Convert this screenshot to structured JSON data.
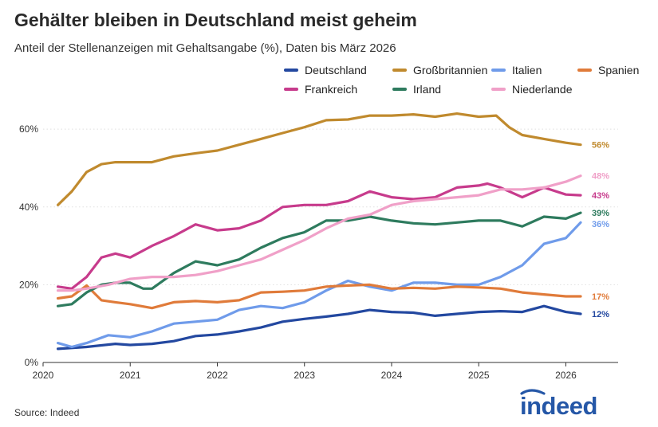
{
  "title": "Gehälter bleiben in Deutschland meist geheim",
  "subtitle": "Anteil der Stellenanzeigen mit Gehaltsangabe (%), Daten bis März 2026",
  "source": "Source: Indeed",
  "logo_text": "indeed",
  "colors": {
    "logo": "#2557a7",
    "axis": "#333333",
    "grid": "#e0e0e0"
  },
  "chart_data": {
    "type": "line",
    "title": "Gehälter bleiben in Deutschland meist geheim",
    "xlabel": "",
    "ylabel": "",
    "xlim": [
      2020,
      2026.6
    ],
    "ylim": [
      0,
      67
    ],
    "x_ticks": [
      2020,
      2021,
      2022,
      2023,
      2024,
      2025,
      2026
    ],
    "x_tick_labels": [
      "2020",
      "2021",
      "2022",
      "2023",
      "2024",
      "2025",
      "2026"
    ],
    "y_ticks": [
      0,
      20,
      40,
      60
    ],
    "y_tick_labels": [
      "0%",
      "20%",
      "40%",
      "60%"
    ],
    "grid": "y-dotted",
    "legend_position": "top-right",
    "series": [
      {
        "name": "Deutschland",
        "color": "#2348a0",
        "end_label": "12%",
        "x": [
          2020.17,
          2020.5,
          2020.83,
          2021.0,
          2021.25,
          2021.5,
          2021.75,
          2022.0,
          2022.25,
          2022.5,
          2022.75,
          2023.0,
          2023.25,
          2023.5,
          2023.75,
          2024.0,
          2024.25,
          2024.5,
          2024.75,
          2025.0,
          2025.25,
          2025.5,
          2025.75,
          2026.0,
          2026.17
        ],
        "y": [
          3.5,
          4,
          4.8,
          4.5,
          4.8,
          5.5,
          6.8,
          7.2,
          8,
          9,
          10.5,
          11.2,
          11.8,
          12.5,
          13.5,
          13,
          12.8,
          12,
          12.5,
          13,
          13.2,
          13,
          14.5,
          13,
          12.5
        ]
      },
      {
        "name": "Großbritannien",
        "color": "#c08a2e",
        "end_label": "56%",
        "x": [
          2020.17,
          2020.33,
          2020.5,
          2020.67,
          2020.83,
          2021.0,
          2021.25,
          2021.5,
          2021.75,
          2022.0,
          2022.25,
          2022.5,
          2022.75,
          2023.0,
          2023.25,
          2023.5,
          2023.75,
          2024.0,
          2024.25,
          2024.5,
          2024.75,
          2025.0,
          2025.2,
          2025.35,
          2025.5,
          2025.75,
          2026.0,
          2026.17
        ],
        "y": [
          40.5,
          44,
          49,
          51,
          51.5,
          51.5,
          51.5,
          53,
          53.8,
          54.5,
          56,
          57.5,
          59,
          60.5,
          62.3,
          62.5,
          63.5,
          63.5,
          63.8,
          63.2,
          64,
          63.2,
          63.5,
          60.5,
          58.5,
          57.5,
          56.5,
          56
        ]
      },
      {
        "name": "Italien",
        "color": "#6f9bea",
        "end_label": "36%",
        "x": [
          2020.17,
          2020.33,
          2020.5,
          2020.75,
          2021.0,
          2021.25,
          2021.5,
          2021.75,
          2022.0,
          2022.25,
          2022.5,
          2022.75,
          2023.0,
          2023.25,
          2023.5,
          2023.75,
          2024.0,
          2024.25,
          2024.5,
          2024.75,
          2025.0,
          2025.25,
          2025.5,
          2025.75,
          2026.0,
          2026.17
        ],
        "y": [
          5,
          4,
          5,
          7,
          6.5,
          8,
          10,
          10.5,
          11,
          13.5,
          14.5,
          14,
          15.5,
          18.5,
          21,
          19.5,
          18.5,
          20.5,
          20.5,
          20,
          20,
          22,
          25,
          30.5,
          32,
          36
        ]
      },
      {
        "name": "Spanien",
        "color": "#e07b3a",
        "end_label": "17%",
        "x": [
          2020.17,
          2020.33,
          2020.5,
          2020.67,
          2020.83,
          2021.0,
          2021.25,
          2021.5,
          2021.75,
          2022.0,
          2022.25,
          2022.5,
          2022.75,
          2023.0,
          2023.25,
          2023.5,
          2023.75,
          2024.0,
          2024.25,
          2024.5,
          2024.75,
          2025.0,
          2025.25,
          2025.5,
          2025.75,
          2026.0,
          2026.17
        ],
        "y": [
          16.5,
          17,
          19.8,
          16,
          15.5,
          15,
          14,
          15.5,
          15.8,
          15.5,
          16,
          18,
          18.2,
          18.5,
          19.5,
          19.8,
          20,
          19,
          19.2,
          19,
          19.5,
          19.3,
          19,
          18,
          17.5,
          17,
          17
        ]
      },
      {
        "name": "Frankreich",
        "color": "#c73b8c",
        "end_label": "43%",
        "x": [
          2020.17,
          2020.33,
          2020.5,
          2020.67,
          2020.83,
          2021.0,
          2021.25,
          2021.5,
          2021.75,
          2022.0,
          2022.25,
          2022.5,
          2022.75,
          2023.0,
          2023.25,
          2023.5,
          2023.75,
          2024.0,
          2024.25,
          2024.5,
          2024.75,
          2025.0,
          2025.1,
          2025.25,
          2025.5,
          2025.75,
          2026.0,
          2026.17
        ],
        "y": [
          19.5,
          19,
          22,
          27,
          28,
          27,
          30,
          32.5,
          35.5,
          34,
          34.5,
          36.5,
          40,
          40.5,
          40.5,
          41.5,
          44,
          42.5,
          42,
          42.5,
          45,
          45.5,
          46,
          45,
          42.5,
          45,
          43.2,
          43
        ]
      },
      {
        "name": "Irland",
        "color": "#2e7b5e",
        "end_label": "39%",
        "x": [
          2020.17,
          2020.33,
          2020.5,
          2020.67,
          2020.83,
          2021.0,
          2021.15,
          2021.25,
          2021.5,
          2021.75,
          2022.0,
          2022.25,
          2022.5,
          2022.75,
          2023.0,
          2023.25,
          2023.5,
          2023.75,
          2024.0,
          2024.25,
          2024.5,
          2024.75,
          2025.0,
          2025.25,
          2025.5,
          2025.75,
          2026.0,
          2026.17
        ],
        "y": [
          14.5,
          15,
          18,
          20,
          20.5,
          20.5,
          19,
          19,
          23,
          26,
          25,
          26.5,
          29.5,
          32,
          33.5,
          36.5,
          36.5,
          37.5,
          36.5,
          35.8,
          35.5,
          36,
          36.5,
          36.5,
          35,
          37.5,
          37,
          38.5
        ]
      },
      {
        "name": "Niederlande",
        "color": "#f0a0c8",
        "end_label": "48%",
        "x": [
          2020.17,
          2020.33,
          2020.5,
          2020.75,
          2021.0,
          2021.25,
          2021.5,
          2021.75,
          2022.0,
          2022.25,
          2022.5,
          2022.75,
          2023.0,
          2023.25,
          2023.5,
          2023.75,
          2024.0,
          2024.25,
          2024.5,
          2024.75,
          2025.0,
          2025.25,
          2025.5,
          2025.75,
          2026.0,
          2026.17
        ],
        "y": [
          18.5,
          18.5,
          19,
          20,
          21.5,
          22,
          22,
          22.5,
          23.5,
          25,
          26.5,
          29,
          31.5,
          34.5,
          37,
          38,
          40.5,
          41.5,
          42,
          42.5,
          43,
          44.5,
          44.5,
          45,
          46.5,
          48
        ]
      }
    ]
  }
}
